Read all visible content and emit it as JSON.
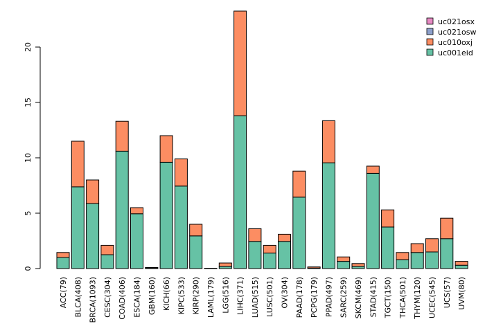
{
  "chart_data": {
    "type": "bar",
    "stacked": true,
    "title": "",
    "xlabel": "",
    "ylabel": "",
    "ylim": [
      0,
      23.5
    ],
    "yticks": [
      0,
      5,
      10,
      15,
      20
    ],
    "legend_position": "top-right",
    "categories": [
      "ACC(79)",
      "BLCA(408)",
      "BRCA(1093)",
      "CESC(304)",
      "COAD(406)",
      "ESCA(184)",
      "GBM(160)",
      "KICH(66)",
      "KIPC(533)",
      "KIRP(290)",
      "LAML(179)",
      "LGG(516)",
      "LIHC(371)",
      "LUAD(515)",
      "LUSC(501)",
      "OV(304)",
      "PAAD(178)",
      "PCPG(179)",
      "PPAD(497)",
      "SARC(259)",
      "SKCM(469)",
      "STAD(415)",
      "TGCT(150)",
      "THCA(501)",
      "THYM(120)",
      "UCEC(545)",
      "UCS(57)",
      "UVM(80)"
    ],
    "series": [
      {
        "name": "uc001eid",
        "color": "#66c2a5",
        "values": [
          1.0,
          7.38,
          5.87,
          1.25,
          10.6,
          4.95,
          0.05,
          9.6,
          7.45,
          2.95,
          0.02,
          0.2,
          13.8,
          2.45,
          1.4,
          2.45,
          6.45,
          0.05,
          9.55,
          0.65,
          0.2,
          8.6,
          3.75,
          0.8,
          1.45,
          1.5,
          2.7,
          0.3
        ]
      },
      {
        "name": "uc010oxj",
        "color": "#fc8d62",
        "values": [
          0.45,
          4.12,
          2.13,
          0.85,
          2.7,
          0.55,
          0.05,
          2.4,
          2.45,
          1.05,
          0.01,
          0.3,
          9.45,
          1.15,
          0.7,
          0.65,
          2.35,
          0.1,
          3.8,
          0.4,
          0.25,
          0.65,
          1.55,
          0.65,
          0.8,
          1.2,
          1.85,
          0.35
        ]
      },
      {
        "name": "uc021osw",
        "color": "#8da0cb",
        "values": [
          0,
          0,
          0,
          0,
          0,
          0,
          0,
          0,
          0,
          0,
          0,
          0,
          0,
          0,
          0,
          0,
          0,
          0,
          0,
          0,
          0,
          0,
          0,
          0,
          0,
          0,
          0,
          0
        ]
      },
      {
        "name": "uc021osx",
        "color": "#e78ac3",
        "values": [
          0,
          0,
          0,
          0,
          0,
          0,
          0,
          0,
          0,
          0,
          0,
          0,
          0,
          0,
          0,
          0,
          0,
          0,
          0,
          0,
          0,
          0,
          0,
          0,
          0,
          0,
          0,
          0
        ]
      }
    ]
  }
}
